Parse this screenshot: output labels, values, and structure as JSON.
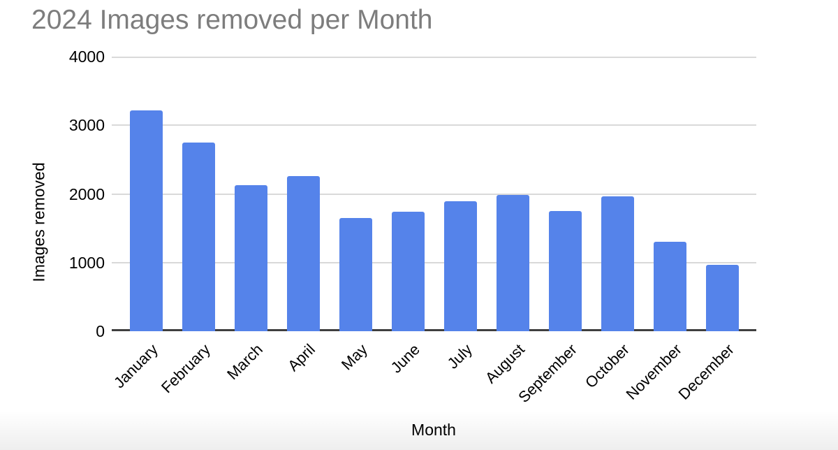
{
  "chart_data": {
    "type": "bar",
    "title": "2024 Images removed per Month",
    "xlabel": "Month",
    "ylabel": "Images removed",
    "categories": [
      "January",
      "February",
      "March",
      "April",
      "May",
      "June",
      "July",
      "August",
      "September",
      "October",
      "November",
      "December"
    ],
    "values": [
      3220,
      2750,
      2130,
      2260,
      1650,
      1740,
      1890,
      1980,
      1750,
      1960,
      1300,
      970
    ],
    "ylim": [
      0,
      4000
    ],
    "yticks": [
      0,
      1000,
      2000,
      3000,
      4000
    ],
    "grid": true,
    "legend": "none",
    "colors": {
      "bar": "#5583EA",
      "title": "#7d7d7d",
      "gridline": "#d9d9d9",
      "axis_line": "#3f3f3f",
      "tick_text": "#000000"
    },
    "x_tick_rotation_deg": -45
  }
}
